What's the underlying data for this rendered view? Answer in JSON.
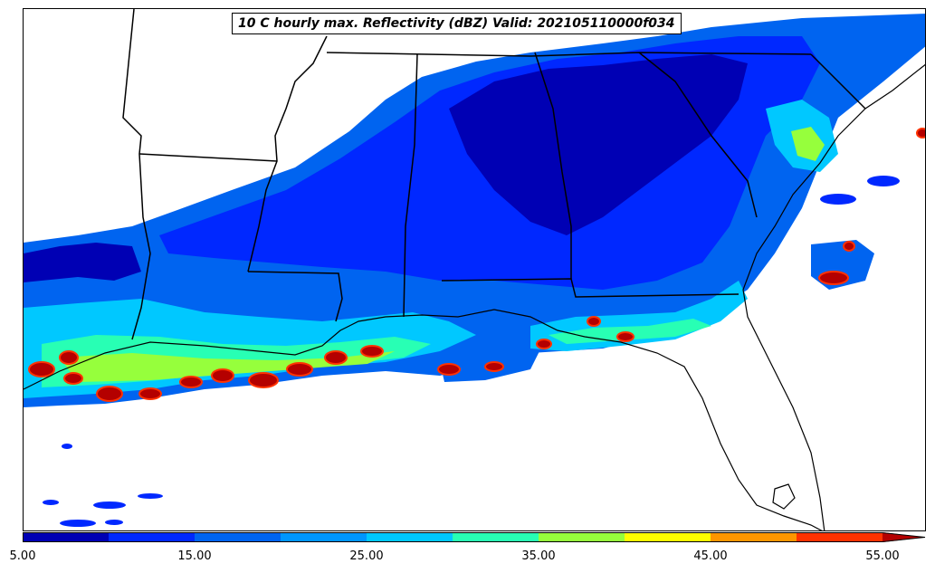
{
  "map": {
    "title": "10 C hourly max. Reflectivity (dBZ) Valid: 202105110000f034",
    "variable": "reflectivity",
    "units": "dBZ"
  },
  "colorbar": {
    "min": 5.0,
    "max": 55.0,
    "step": 5.0,
    "extend": "max",
    "colors": [
      "#0000b4",
      "#0028ff",
      "#0064f0",
      "#0096ff",
      "#00c8ff",
      "#28ffb4",
      "#96ff3c",
      "#ffff00",
      "#ff9600",
      "#ff3200",
      "#b40000"
    ],
    "tick_labels": [
      "5.00",
      "15.00",
      "25.00",
      "35.00",
      "45.00",
      "55.00"
    ]
  }
}
